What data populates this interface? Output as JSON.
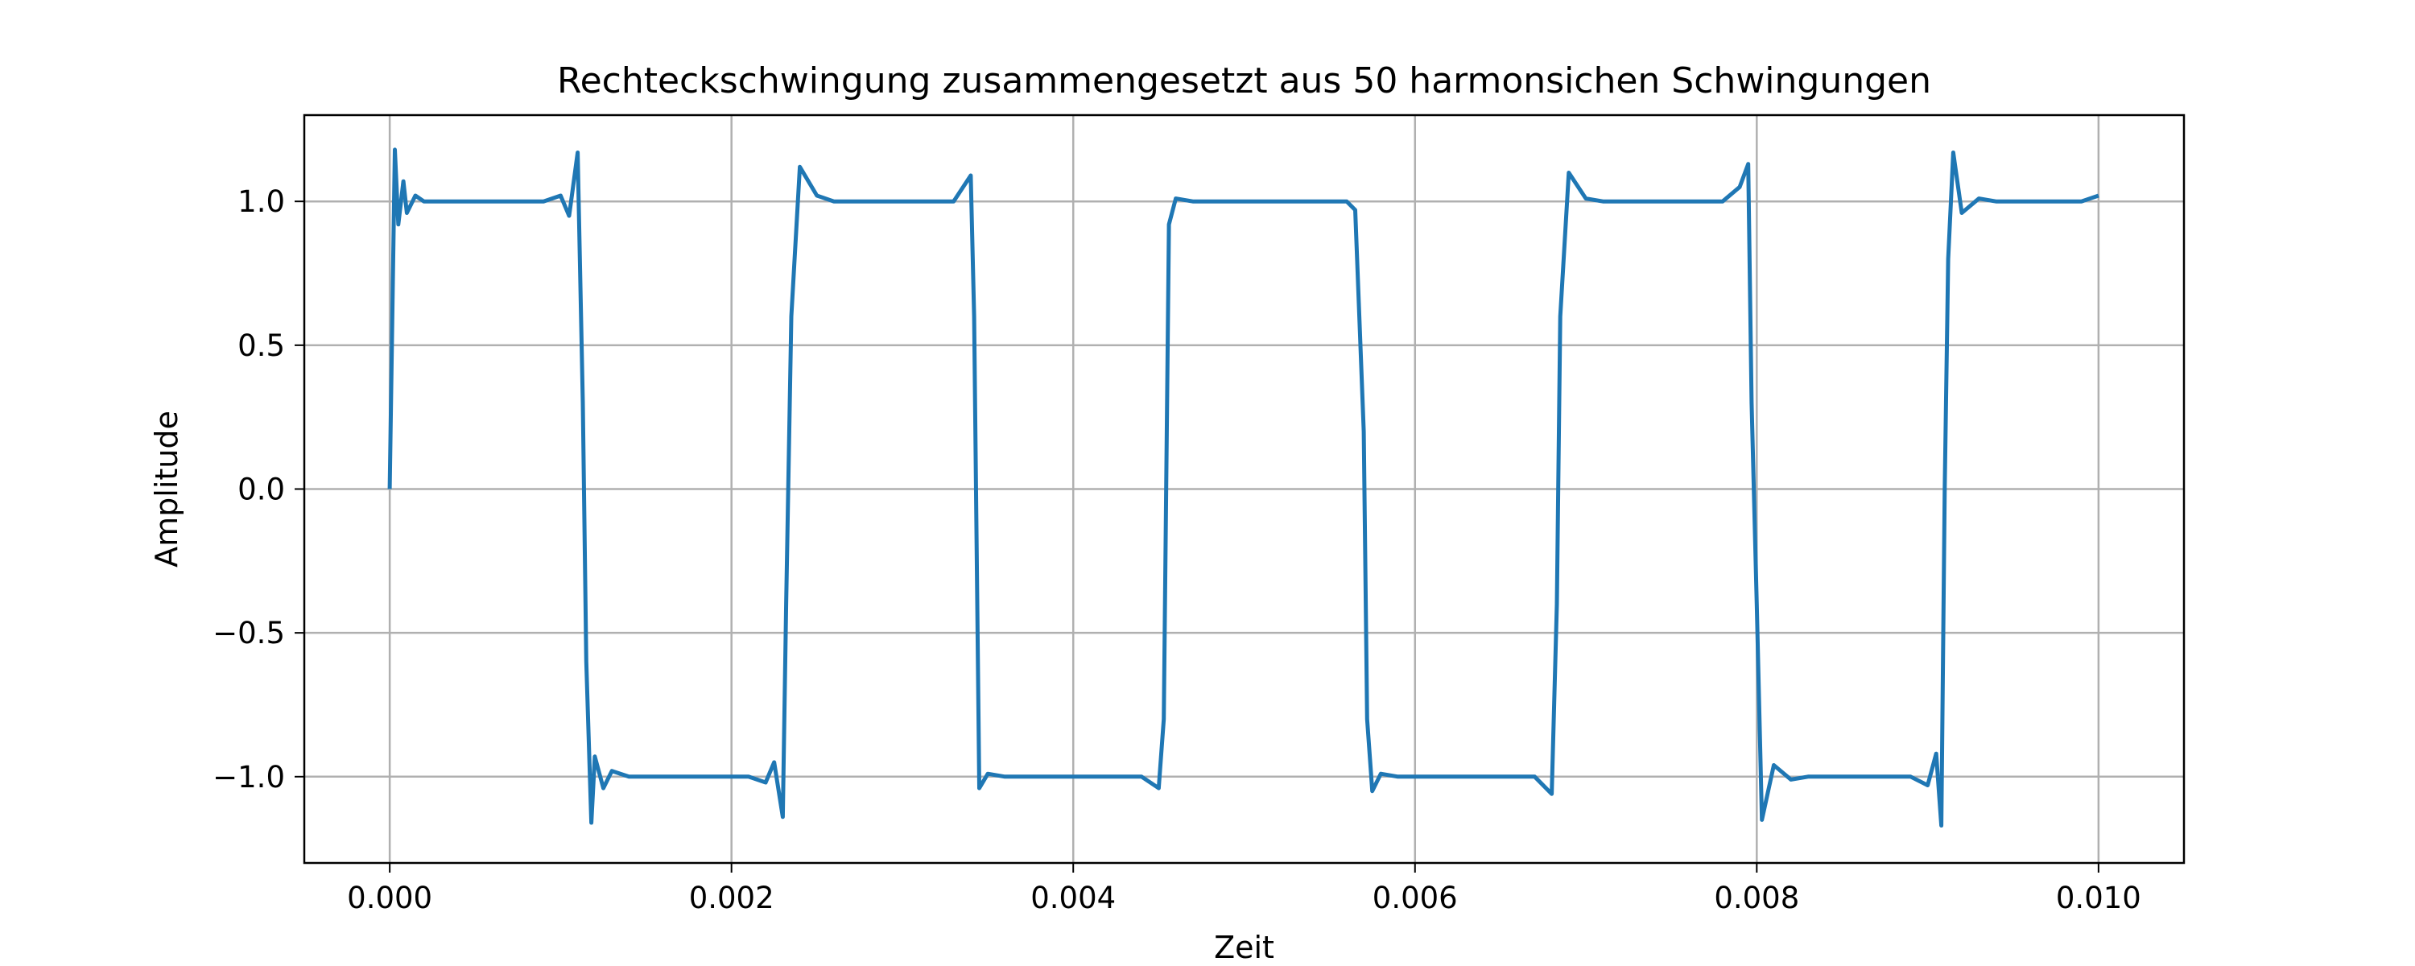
{
  "chart_data": {
    "type": "line",
    "title": "Rechteckschwingung zusammengesetzt aus 50 harmonsichen Schwingungen",
    "xlabel": "Zeit",
    "ylabel": "Amplitude",
    "xlim": [
      -0.0005,
      0.0105
    ],
    "ylim": [
      -1.3,
      1.3
    ],
    "x_ticks": [
      0.0,
      0.002,
      0.004,
      0.006,
      0.008,
      0.01
    ],
    "x_tick_labels": [
      "0.000",
      "0.002",
      "0.004",
      "0.006",
      "0.008",
      "0.010"
    ],
    "y_ticks": [
      -1.0,
      -0.5,
      0.0,
      0.5,
      1.0
    ],
    "y_tick_labels": [
      "−1.0",
      "−0.5",
      "0.0",
      "0.5",
      "1.0"
    ],
    "grid": true,
    "series": [
      {
        "color": "#1f77b4",
        "x": [
          0.0,
          3e-05,
          5e-05,
          8e-05,
          0.0001,
          0.00015,
          0.0002,
          0.0003,
          0.0004,
          0.0005,
          0.0006,
          0.0007,
          0.0008,
          0.0009,
          0.001,
          0.00105,
          0.0011,
          0.00113,
          0.00115,
          0.00118,
          0.0012,
          0.00125,
          0.0013,
          0.0014,
          0.0015,
          0.0016,
          0.0017,
          0.0018,
          0.0019,
          0.002,
          0.0021,
          0.0022,
          0.00225,
          0.0023,
          0.00232,
          0.00235,
          0.0024,
          0.0025,
          0.0026,
          0.0027,
          0.0028,
          0.0029,
          0.003,
          0.0031,
          0.0032,
          0.0033,
          0.0034,
          0.00342,
          0.00345,
          0.0035,
          0.0036,
          0.0037,
          0.0038,
          0.0039,
          0.004,
          0.0041,
          0.0042,
          0.0043,
          0.0044,
          0.0045,
          0.00453,
          0.00456,
          0.0046,
          0.0047,
          0.0048,
          0.0049,
          0.005,
          0.0051,
          0.0052,
          0.0053,
          0.0054,
          0.0055,
          0.0056,
          0.00565,
          0.0057,
          0.00572,
          0.00575,
          0.0058,
          0.0059,
          0.006,
          0.0061,
          0.0062,
          0.0063,
          0.0064,
          0.0065,
          0.0066,
          0.0067,
          0.0068,
          0.00683,
          0.00685,
          0.0069,
          0.007,
          0.0071,
          0.0072,
          0.0073,
          0.0074,
          0.0075,
          0.0076,
          0.0077,
          0.0078,
          0.0079,
          0.00795,
          0.00797,
          0.008,
          0.00803,
          0.0081,
          0.0082,
          0.0083,
          0.0084,
          0.0085,
          0.0086,
          0.0087,
          0.0088,
          0.0089,
          0.009,
          0.00905,
          0.00908,
          0.0091,
          0.00912,
          0.00915,
          0.0092,
          0.0093,
          0.0094,
          0.0095,
          0.0096,
          0.0097,
          0.0098,
          0.0099,
          0.01
        ],
        "y": [
          0.0,
          1.18,
          0.92,
          1.07,
          0.96,
          1.02,
          1.0,
          1.0,
          1.0,
          1.0,
          1.0,
          1.0,
          1.0,
          1.0,
          1.02,
          0.95,
          1.17,
          0.3,
          -0.6,
          -1.16,
          -0.93,
          -1.04,
          -0.98,
          -1.0,
          -1.0,
          -1.0,
          -1.0,
          -1.0,
          -1.0,
          -1.0,
          -1.0,
          -1.02,
          -0.95,
          -1.14,
          -0.4,
          0.6,
          1.12,
          1.02,
          1.0,
          1.0,
          1.0,
          1.0,
          1.0,
          1.0,
          1.0,
          1.0,
          1.09,
          0.6,
          -1.04,
          -0.99,
          -1.0,
          -1.0,
          -1.0,
          -1.0,
          -1.0,
          -1.0,
          -1.0,
          -1.0,
          -1.0,
          -1.04,
          -0.8,
          0.92,
          1.01,
          1.0,
          1.0,
          1.0,
          1.0,
          1.0,
          1.0,
          1.0,
          1.0,
          1.0,
          1.0,
          0.97,
          0.2,
          -0.8,
          -1.05,
          -0.99,
          -1.0,
          -1.0,
          -1.0,
          -1.0,
          -1.0,
          -1.0,
          -1.0,
          -1.0,
          -1.0,
          -1.06,
          -0.4,
          0.6,
          1.1,
          1.01,
          1.0,
          1.0,
          1.0,
          1.0,
          1.0,
          1.0,
          1.0,
          1.0,
          1.05,
          1.13,
          0.3,
          -0.4,
          -1.15,
          -0.96,
          -1.01,
          -1.0,
          -1.0,
          -1.0,
          -1.0,
          -1.0,
          -1.0,
          -1.0,
          -1.03,
          -0.92,
          -1.17,
          0.0,
          0.8,
          1.17,
          0.96,
          1.01,
          1.0,
          1.0,
          1.0,
          1.0,
          1.0,
          1.0,
          1.02
        ]
      }
    ]
  }
}
